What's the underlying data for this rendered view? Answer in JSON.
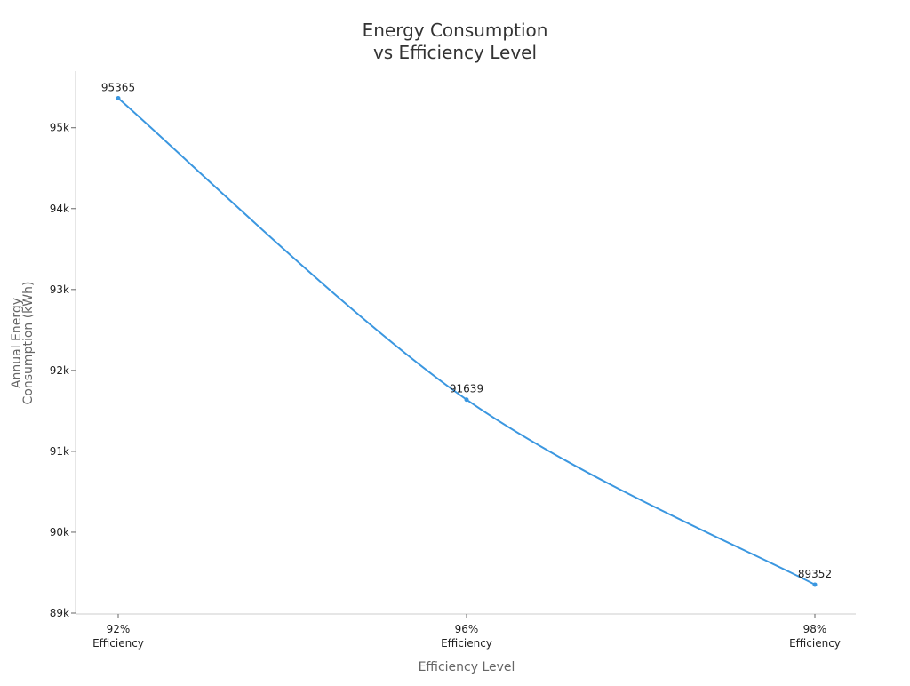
{
  "chart_data": {
    "type": "line",
    "title_lines": [
      "Energy Consumption",
      "vs Efficiency Level"
    ],
    "xlabel": "Efficiency Level",
    "ylabel_lines": [
      "Annual Energy",
      "Consumption (kWh)"
    ],
    "categories": [
      {
        "pct": "92%",
        "sub": "Efficiency"
      },
      {
        "pct": "96%",
        "sub": "Efficiency"
      },
      {
        "pct": "98%",
        "sub": "Efficiency"
      }
    ],
    "x": [
      92,
      96,
      98
    ],
    "values": [
      95365,
      91639,
      89352
    ],
    "data_labels": [
      "95365",
      "91639",
      "89352"
    ],
    "ylim": [
      89000,
      95700
    ],
    "yticks": [
      89000,
      90000,
      91000,
      92000,
      93000,
      94000,
      95000
    ],
    "ytick_labels": [
      "89k",
      "90k",
      "91k",
      "92k",
      "93k",
      "94k",
      "95k"
    ],
    "line_color": "#3b97e0",
    "grid": false,
    "legend": "none"
  }
}
